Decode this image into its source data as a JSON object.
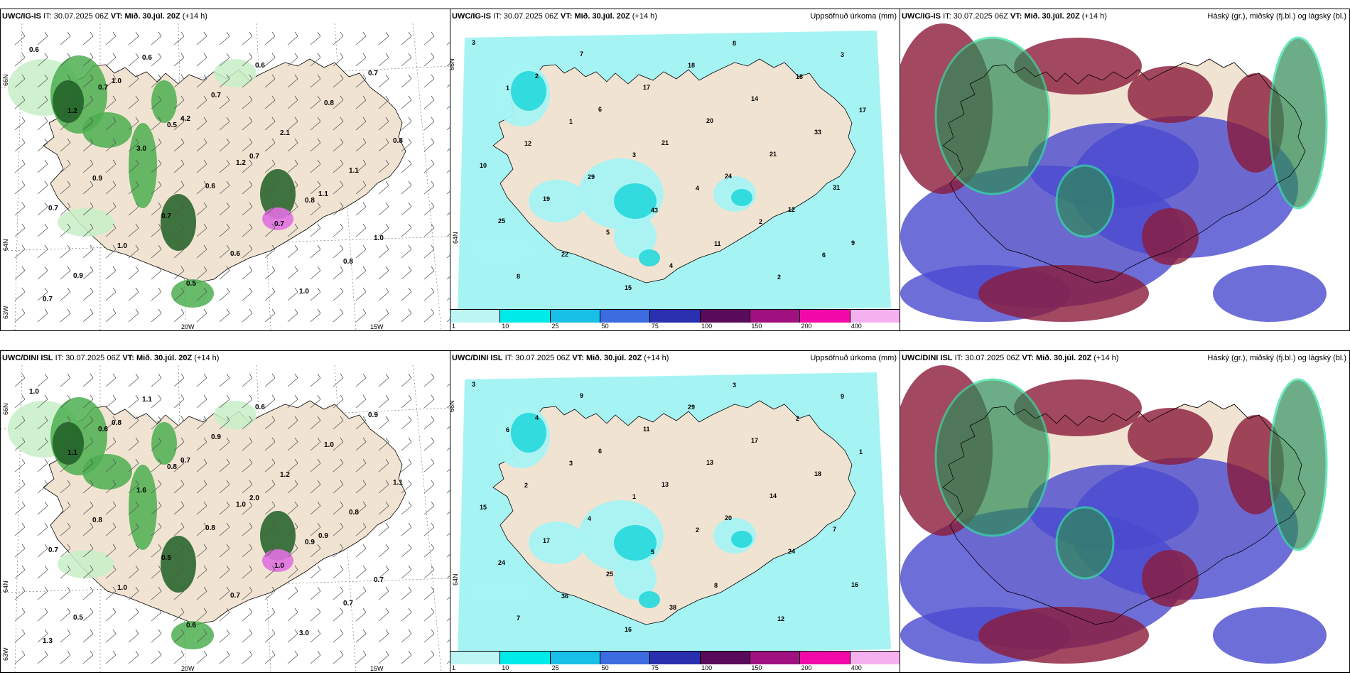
{
  "panels": {
    "r1c1": {
      "model": "UWC/IG-IS",
      "it_label": "IT:",
      "it_value": "30.07.2025 06Z",
      "vt_label": "VT:",
      "vt_value": "Mið. 30.júl. 20Z",
      "offset": "(+14 h)",
      "field": ""
    },
    "r1c2": {
      "model": "UWC/IG-IS",
      "it_label": "IT:",
      "it_value": "30.07.2025 06Z",
      "vt_label": "VT:",
      "vt_value": "Mið. 30.júl. 20Z",
      "offset": "(+14 h)",
      "field": "Uppsöfnuð úrkoma (mm)"
    },
    "r1c3": {
      "model": "UWC/IG-IS",
      "it_label": "IT:",
      "it_value": "30.07.2025 06Z",
      "vt_label": "VT:",
      "vt_value": "Mið. 30.júl. 20Z",
      "offset": "(+14 h)",
      "field": "Háský (gr.), miðský (fj.bl.) og lágský (bl.)"
    },
    "r2c1": {
      "model": "UWC/DINI ISL",
      "it_label": "IT:",
      "it_value": "30.07.2025 06Z",
      "vt_label": "VT:",
      "vt_value": "Mið. 30.júl. 20Z",
      "offset": "(+14 h)",
      "field": ""
    },
    "r2c2": {
      "model": "UWC/DINI ISL",
      "it_label": "IT:",
      "it_value": "30.07.2025 06Z",
      "vt_label": "VT:",
      "vt_value": "Mið. 30.júl. 20Z",
      "offset": "(+14 h)",
      "field": "Uppsöfnuð úrkoma (mm)"
    },
    "r2c3": {
      "model": "UWC/DINI ISL",
      "it_label": "IT:",
      "it_value": "30.07.2025 06Z",
      "vt_label": "VT:",
      "vt_value": "Mið. 30.júl. 20Z",
      "offset": "(+14 h)",
      "field": "Háský (gr.), miðský (fj.bl.) og lágský (bl.)"
    }
  },
  "axes": {
    "lon_20": "20W",
    "lon_15": "15W",
    "lat_66": "66N",
    "lat_64": "64N",
    "lat_63": "63W"
  },
  "colorbar": {
    "ticks": [
      "1",
      "10",
      "25",
      "50",
      "75",
      "100",
      "150",
      "200",
      "400"
    ],
    "colors": [
      "#bdf5f5",
      "#00eaea",
      "#18bfe6",
      "#3d6be0",
      "#2a2fb0",
      "#5a0a5a",
      "#a0107e",
      "#f20aa8",
      "#f5b0ef"
    ]
  },
  "colors": {
    "land": "#f1e3d2",
    "precip_light": "#c8efc8",
    "precip_mid": "#4caf50",
    "precip_dark": "#1e5e24",
    "accum_light": "#a6f3f3",
    "accum_mid": "#25d8dc",
    "cloud_high": "#2e8b57",
    "cloud_mid": "#8b1a3a",
    "cloud_low": "#4a4ad0"
  },
  "labels": {
    "r1c1": [
      "0.6",
      "0.7",
      "0.5",
      "1.2",
      "0.8",
      "1.0",
      "0.9",
      "0.6",
      "0.7",
      "2.1",
      "1.1",
      "0.7",
      "1.0",
      "0.5",
      "0.6",
      "0.8",
      "0.8",
      "0.9",
      "0.7",
      "0.6",
      "1.0",
      "0.7",
      "1.2",
      "3.0",
      "0.6",
      "0.7",
      "0.8",
      "0.7",
      "1.0",
      "4.2",
      "0.7",
      "1.1"
    ],
    "r1c2": [
      "3",
      "2",
      "6",
      "21",
      "24",
      "12",
      "9",
      "8",
      "7",
      "17",
      "20",
      "21",
      "31",
      "25",
      "22",
      "15",
      "18",
      "14",
      "33",
      "10",
      "19",
      "5",
      "4",
      "8",
      "18",
      "17",
      "12",
      "29",
      "43",
      "11",
      "2",
      "3",
      "1",
      "1",
      "3",
      "4",
      "2",
      "6"
    ],
    "r2c1": [
      "1.0",
      "0.6",
      "0.8",
      "1.0",
      "0.9",
      "0.7",
      "0.5",
      "1.1",
      "0.9",
      "1.2",
      "0.8",
      "0.7",
      "1.0",
      "0.6",
      "0.6",
      "1.0",
      "1.1",
      "0.8",
      "0.5",
      "0.7",
      "3.0",
      "0.9",
      "1.1",
      "1.6",
      "0.8",
      "1.0",
      "0.7",
      "1.3",
      "0.8",
      "0.7",
      "2.0",
      "0.9"
    ],
    "r2c2": [
      "3",
      "4",
      "6",
      "13",
      "20",
      "24",
      "16",
      "7",
      "9",
      "11",
      "13",
      "14",
      "7",
      "24",
      "36",
      "16",
      "29",
      "17",
      "18",
      "15",
      "17",
      "25",
      "38",
      "3",
      "2",
      "1",
      "2",
      "4",
      "5",
      "8",
      "12",
      "9",
      "6",
      "3",
      "1",
      "2"
    ]
  }
}
